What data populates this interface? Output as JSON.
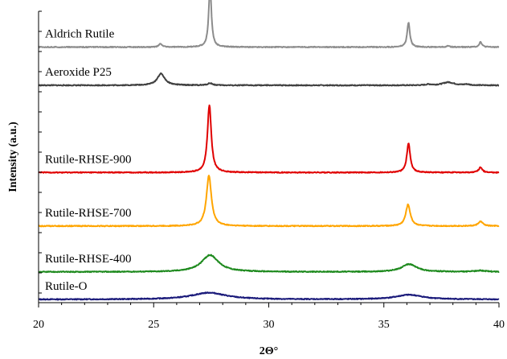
{
  "chart_data": {
    "type": "line",
    "title": "",
    "xlabel": "2Θ°",
    "ylabel": "Intensity (a.u.)",
    "xlim": [
      20,
      40
    ],
    "x_ticks": [
      20,
      25,
      30,
      35,
      40
    ],
    "grid": false,
    "legend": "none",
    "y_axis_values_shown": false,
    "series": [
      {
        "name": "Rutile-O",
        "color": "#1a1a7a",
        "baseline": 0.0,
        "peaks": [
          {
            "x": 27.4,
            "height": 0.022,
            "width": 0.9
          },
          {
            "x": 36.1,
            "height": 0.015,
            "width": 0.7
          }
        ]
      },
      {
        "name": "Rutile-RHSE-400",
        "color": "#1e8a1e",
        "baseline": 0.09,
        "peaks": [
          {
            "x": 27.45,
            "height": 0.055,
            "width": 0.45
          },
          {
            "x": 36.1,
            "height": 0.025,
            "width": 0.4
          },
          {
            "x": 39.2,
            "height": 0.004,
            "width": 0.3
          }
        ]
      },
      {
        "name": "Rutile-RHSE-700",
        "color": "#ffa500",
        "baseline": 0.24,
        "peaks": [
          {
            "x": 27.4,
            "height": 0.165,
            "width": 0.13
          },
          {
            "x": 36.05,
            "height": 0.07,
            "width": 0.12
          },
          {
            "x": 39.2,
            "height": 0.015,
            "width": 0.12
          }
        ]
      },
      {
        "name": "Rutile-RHSE-900",
        "color": "#e00000",
        "baseline": 0.415,
        "peaks": [
          {
            "x": 27.42,
            "height": 0.22,
            "width": 0.1
          },
          {
            "x": 36.07,
            "height": 0.095,
            "width": 0.09
          },
          {
            "x": 39.2,
            "height": 0.017,
            "width": 0.09
          }
        ]
      },
      {
        "name": "Aeroxide P25",
        "color": "#404040",
        "baseline": 0.7,
        "peaks": [
          {
            "x": 25.32,
            "height": 0.038,
            "width": 0.2
          },
          {
            "x": 27.45,
            "height": 0.007,
            "width": 0.12
          },
          {
            "x": 36.95,
            "height": 0.003,
            "width": 0.15
          },
          {
            "x": 37.8,
            "height": 0.01,
            "width": 0.3
          },
          {
            "x": 38.6,
            "height": 0.003,
            "width": 0.15
          }
        ]
      },
      {
        "name": "Aldrich Rutile",
        "color": "#8c8c8c",
        "baseline": 0.825,
        "peaks": [
          {
            "x": 25.3,
            "height": 0.011,
            "width": 0.08
          },
          {
            "x": 27.45,
            "height": 0.2,
            "width": 0.07
          },
          {
            "x": 36.07,
            "height": 0.08,
            "width": 0.07
          },
          {
            "x": 37.8,
            "height": 0.004,
            "width": 0.07
          },
          {
            "x": 39.2,
            "height": 0.017,
            "width": 0.07
          }
        ]
      }
    ]
  }
}
